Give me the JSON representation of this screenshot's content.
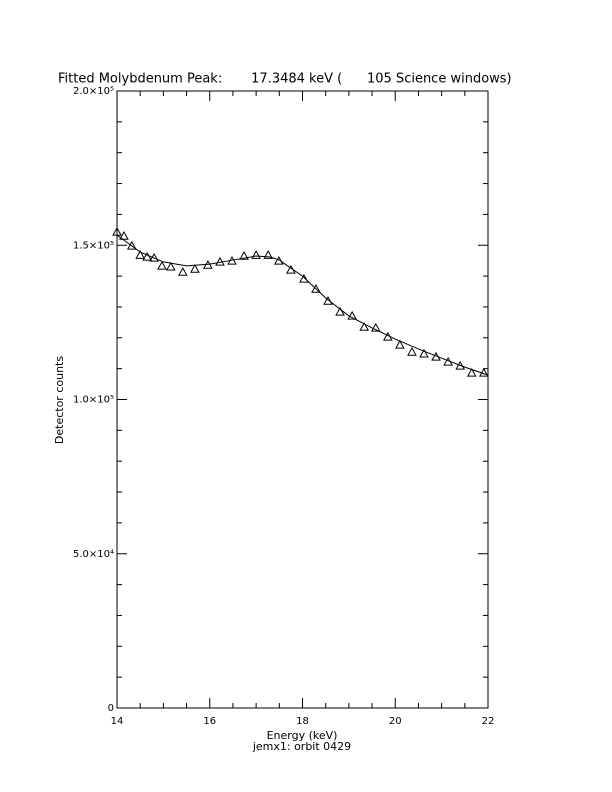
{
  "chart_data": {
    "type": "scatter",
    "title": "Fitted Molybdenum Peak:       17.3484 keV (      105 Science windows)",
    "xlabel": "Energy (keV)",
    "ylabel": "Detector counts",
    "footer": "jemx1: orbit 0429",
    "xlim": [
      14,
      22
    ],
    "ylim": [
      0,
      200000
    ],
    "xticks": [
      14,
      16,
      18,
      20,
      22
    ],
    "yticks": [
      0,
      {
        "value": 50000,
        "label": "5.0×10⁴"
      },
      {
        "value": 100000,
        "label": "1.0×10⁵"
      },
      {
        "value": 150000,
        "label": "1.5×10⁵"
      },
      {
        "value": 200000,
        "label": "2.0×10⁵"
      }
    ],
    "xminorticks": [
      14.5,
      15,
      15.5,
      16.5,
      17,
      17.5,
      18.5,
      19,
      19.5,
      20.5,
      21,
      21.5
    ],
    "yminorticks": [
      10000,
      20000,
      30000,
      40000,
      60000,
      70000,
      80000,
      90000,
      110000,
      120000,
      130000,
      140000,
      160000,
      170000,
      180000,
      190000
    ],
    "series": [
      {
        "style": "markers",
        "marker": "triangle",
        "color": "#000000",
        "x": [
          14.0,
          14.15,
          14.32,
          14.5,
          14.65,
          14.8,
          14.97,
          15.16,
          15.42,
          15.68,
          15.96,
          16.22,
          16.48,
          16.74,
          17.0,
          17.26,
          17.49,
          17.75,
          18.03,
          18.29,
          18.55,
          18.81,
          19.07,
          19.33,
          19.58,
          19.84,
          20.1,
          20.36,
          20.62,
          20.88,
          21.14,
          21.4,
          21.65,
          21.91
        ],
        "values": [
          154300,
          153000,
          149800,
          146800,
          146200,
          145900,
          143300,
          143000,
          141300,
          142300,
          143600,
          144600,
          144900,
          146500,
          146800,
          146800,
          144900,
          142000,
          139100,
          135800,
          131900,
          128400,
          127100,
          123500,
          123200,
          120300,
          117700,
          115400,
          114800,
          113800,
          112200,
          110900,
          108600,
          108600
        ]
      },
      {
        "style": "line",
        "color": "#000000",
        "x": [
          14,
          14.5,
          15,
          15.5,
          16,
          16.5,
          17,
          17.3,
          17.5,
          18,
          18.5,
          19,
          19.5,
          20,
          20.5,
          21,
          21.5,
          22
        ],
        "values": [
          153300,
          147800,
          144600,
          143300,
          143900,
          145200,
          146500,
          146200,
          145200,
          140000,
          132900,
          127100,
          123200,
          119600,
          116400,
          113400,
          110500,
          107900
        ]
      }
    ]
  }
}
